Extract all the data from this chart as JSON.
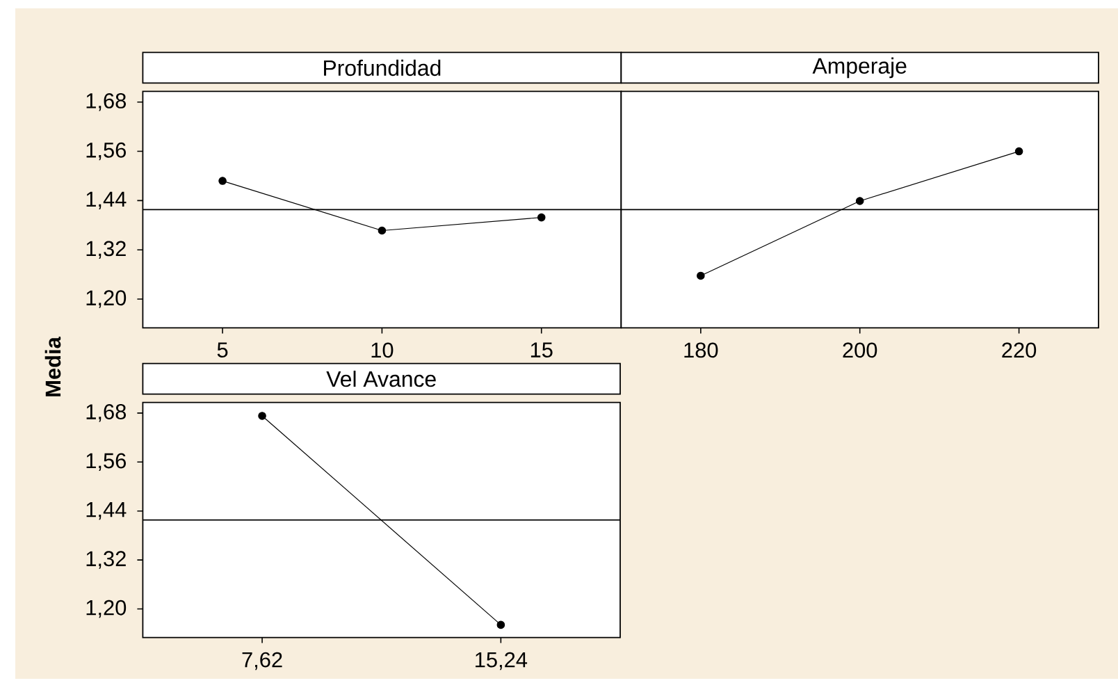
{
  "chart_data": [
    {
      "type": "line",
      "title": "Profundidad",
      "ylabel": "Media",
      "categories": [
        "5",
        "10",
        "15"
      ],
      "values": [
        1.488,
        1.367,
        1.399
      ],
      "color": "#000000",
      "marker": "circle",
      "ylim": [
        1.13,
        1.706
      ],
      "yticks": [
        {
          "value": 1.2,
          "label": "1,20"
        },
        {
          "value": 1.32,
          "label": "1,32"
        },
        {
          "value": 1.44,
          "label": "1,44"
        },
        {
          "value": 1.56,
          "label": "1,56"
        },
        {
          "value": 1.68,
          "label": "1,68"
        }
      ],
      "ref_lines": [
        {
          "axis": "y",
          "value": 1.418,
          "color": "#000000"
        }
      ]
    },
    {
      "type": "line",
      "title": "Amperaje",
      "categories": [
        "180",
        "200",
        "220"
      ],
      "values": [
        1.257,
        1.439,
        1.56
      ],
      "color": "#000000",
      "marker": "circle",
      "ylim": [
        1.13,
        1.706
      ],
      "tick_labels": "x",
      "ref_lines": [
        {
          "axis": "y",
          "value": 1.418,
          "color": "#000000"
        }
      ]
    },
    {
      "type": "line",
      "title": "Vel Avance",
      "categories": [
        "7,62",
        "15,24"
      ],
      "values": [
        1.673,
        1.161
      ],
      "color": "#000000",
      "marker": "circle",
      "ylim": [
        1.13,
        1.706
      ],
      "yticks": [
        {
          "value": 1.2,
          "label": "1,20"
        },
        {
          "value": 1.32,
          "label": "1,32"
        },
        {
          "value": 1.44,
          "label": "1,44"
        },
        {
          "value": 1.56,
          "label": "1,56"
        },
        {
          "value": 1.68,
          "label": "1,68"
        }
      ],
      "ref_lines": [
        {
          "axis": "y",
          "value": 1.418,
          "color": "#000000"
        }
      ]
    }
  ]
}
